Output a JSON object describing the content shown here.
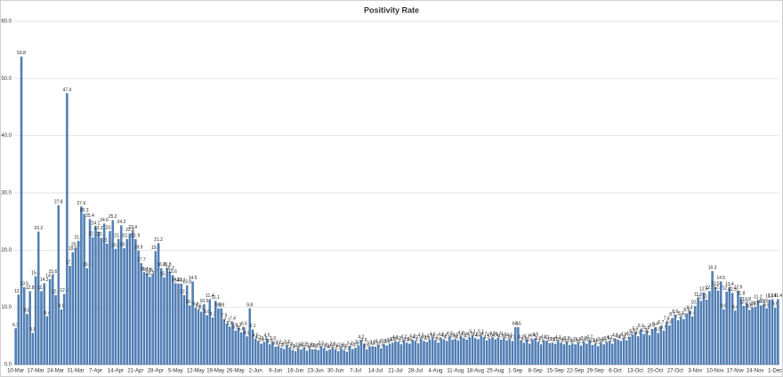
{
  "chart_data": {
    "type": "bar",
    "title": "Positivity Rate",
    "color": "#4f81bd",
    "grid": true,
    "ylim": [
      0,
      60
    ],
    "yticks": [
      {
        "value": 0,
        "label": "0.0"
      },
      {
        "value": 10,
        "label": "10.0"
      },
      {
        "value": 20,
        "label": "20.0"
      },
      {
        "value": 30,
        "label": "30.0"
      },
      {
        "value": 40,
        "label": "40.0"
      },
      {
        "value": 50,
        "label": "50.0"
      },
      {
        "value": 60,
        "label": "60.0"
      }
    ],
    "categories": [
      "10-Mar",
      null,
      null,
      null,
      null,
      null,
      null,
      "17-Mar",
      null,
      null,
      null,
      null,
      null,
      null,
      "24-Mar",
      null,
      null,
      null,
      null,
      null,
      null,
      "31-Mar",
      null,
      null,
      null,
      null,
      null,
      null,
      "7-Apr",
      null,
      null,
      null,
      null,
      null,
      null,
      "14-Apr",
      null,
      null,
      null,
      null,
      null,
      null,
      "21-Apr",
      null,
      null,
      null,
      null,
      null,
      null,
      "28-Apr",
      null,
      null,
      null,
      null,
      null,
      null,
      "5-May",
      null,
      null,
      null,
      null,
      null,
      null,
      "12-May",
      null,
      null,
      null,
      null,
      null,
      null,
      "19-May",
      null,
      null,
      null,
      null,
      null,
      null,
      "26-May",
      null,
      null,
      null,
      null,
      null,
      null,
      "2-Jun",
      null,
      null,
      null,
      null,
      null,
      null,
      "9-Jun",
      null,
      null,
      null,
      null,
      null,
      null,
      "16-Jun",
      null,
      null,
      null,
      null,
      null,
      null,
      "23-Jun",
      null,
      null,
      null,
      null,
      null,
      null,
      "30-Jun",
      null,
      null,
      null,
      null,
      null,
      null,
      "7-Jul",
      null,
      null,
      null,
      null,
      null,
      null,
      "14-Jul",
      null,
      null,
      null,
      null,
      null,
      null,
      "21-Jul",
      null,
      null,
      null,
      null,
      null,
      null,
      "28-Jul",
      null,
      null,
      null,
      null,
      null,
      null,
      "4-Aug",
      null,
      null,
      null,
      null,
      null,
      null,
      "11-Aug",
      null,
      null,
      null,
      null,
      null,
      null,
      "18-Aug",
      null,
      null,
      null,
      null,
      null,
      null,
      "25-Aug",
      null,
      null,
      null,
      null,
      null,
      null,
      "1-Sep",
      null,
      null,
      null,
      null,
      null,
      null,
      "8-Sep",
      null,
      null,
      null,
      null,
      null,
      null,
      "15-Sep",
      null,
      null,
      null,
      null,
      null,
      null,
      "22-Sep",
      null,
      null,
      null,
      null,
      null,
      null,
      "29-Sep",
      null,
      null,
      null,
      null,
      null,
      null,
      "6-Oct",
      null,
      null,
      null,
      null,
      null,
      null,
      "13-Oct",
      null,
      null,
      null,
      null,
      null,
      null,
      "20-Oct",
      null,
      null,
      null,
      null,
      null,
      null,
      "27-Oct",
      null,
      null,
      null,
      null,
      null,
      null,
      "3-Nov",
      null,
      null,
      null,
      null,
      null,
      null,
      "10-Nov",
      null,
      null,
      null,
      null,
      null,
      null,
      "17-Nov",
      null,
      null,
      null,
      null,
      null,
      null,
      "24-Nov",
      null,
      null,
      null,
      null,
      null,
      null,
      "1-Dec",
      null
    ],
    "values": [
      6.3,
      12.2,
      53.8,
      13.5,
      8.8,
      12.8,
      5.5,
      15.4,
      23.2,
      12.8,
      14.2,
      8.4,
      14.9,
      15.6,
      12.1,
      27.8,
      9.6,
      12.3,
      47.4,
      17.2,
      19.6,
      20.3,
      21.6,
      27.6,
      26.3,
      16.8,
      25.4,
      22.2,
      24.1,
      23.2,
      22.1,
      24.6,
      21.1,
      23.3,
      25.2,
      20.2,
      21.9,
      24.3,
      20.3,
      21.9,
      22.9,
      23.4,
      21.9,
      19.9,
      17.7,
      16.1,
      15.9,
      15.3,
      15.8,
      19.8,
      21.2,
      16.8,
      15.2,
      16.8,
      16.2,
      15.6,
      14.2,
      14.1,
      14.1,
      12.1,
      13.8,
      10.3,
      14.5,
      9.9,
      9.6,
      9.2,
      10.5,
      8.6,
      11.4,
      8.2,
      11.1,
      9.8,
      9.8,
      7.9,
      7.1,
      6.6,
      7.4,
      5.9,
      6.3,
      5.6,
      6.5,
      4.9,
      9.8,
      6.1,
      4.5,
      4.1,
      3.6,
      3.9,
      4.5,
      3.5,
      3.9,
      3.1,
      3.2,
      2.9,
      2.7,
      3.3,
      2.9,
      2.5,
      2.3,
      2.8,
      2.6,
      2.9,
      2.4,
      2.8,
      2.6,
      2.7,
      2.5,
      3.1,
      2.8,
      2.4,
      2.6,
      2.9,
      2.6,
      2.3,
      2.8,
      2.5,
      2.2,
      3.1,
      2.7,
      2.9,
      3.3,
      4.2,
      3.6,
      2.6,
      3.1,
      3.2,
      3.1,
      3.4,
      2.8,
      3.5,
      3.3,
      3.6,
      3.8,
      4.1,
      3.9,
      3.5,
      4.2,
      3.8,
      3.6,
      4.3,
      4.1,
      3.7,
      4.5,
      4.1,
      3.9,
      4.3,
      4.6,
      4.2,
      3.8,
      4.6,
      4.4,
      4.1,
      4.8,
      4.3,
      4.5,
      4.2,
      4.9,
      4.6,
      4.3,
      4.7,
      5.1,
      4.6,
      4.4,
      5.1,
      4.7,
      4.2,
      4.5,
      4.8,
      4.4,
      4.7,
      4.3,
      4.6,
      4.2,
      4.5,
      4.1,
      6.5,
      6.5,
      4.2,
      3.8,
      4.3,
      3.6,
      4.4,
      4.6,
      3.9,
      3.5,
      4.2,
      4.1,
      3.7,
      3.8,
      3.6,
      4.1,
      3.8,
      3.5,
      3.9,
      3.4,
      3.7,
      3.5,
      3.8,
      3.3,
      3.9,
      3.6,
      4.2,
      3.4,
      3.6,
      3.2,
      3.8,
      3.5,
      3.9,
      4.1,
      3.6,
      4.5,
      4.3,
      4.1,
      4.6,
      4.2,
      4.8,
      5.2,
      5.6,
      4.9,
      6.1,
      5.3,
      5.8,
      5.1,
      6.2,
      6.4,
      5.5,
      6.7,
      5.9,
      7.4,
      6.8,
      8.1,
      8.6,
      7.7,
      8.3,
      7.9,
      8.9,
      9.3,
      8.4,
      10.2,
      11.6,
      11.1,
      12.6,
      11.3,
      12.8,
      16.3,
      13.5,
      12.9,
      14.5,
      9.6,
      12.7,
      13.4,
      12.5,
      9.4,
      12.9,
      11.8,
      10.2,
      10.8,
      9.5,
      9.9,
      10.1,
      11.2,
      10.3,
      10.5,
      9.8,
      11.3,
      11.4,
      9.9,
      11.4
    ]
  }
}
